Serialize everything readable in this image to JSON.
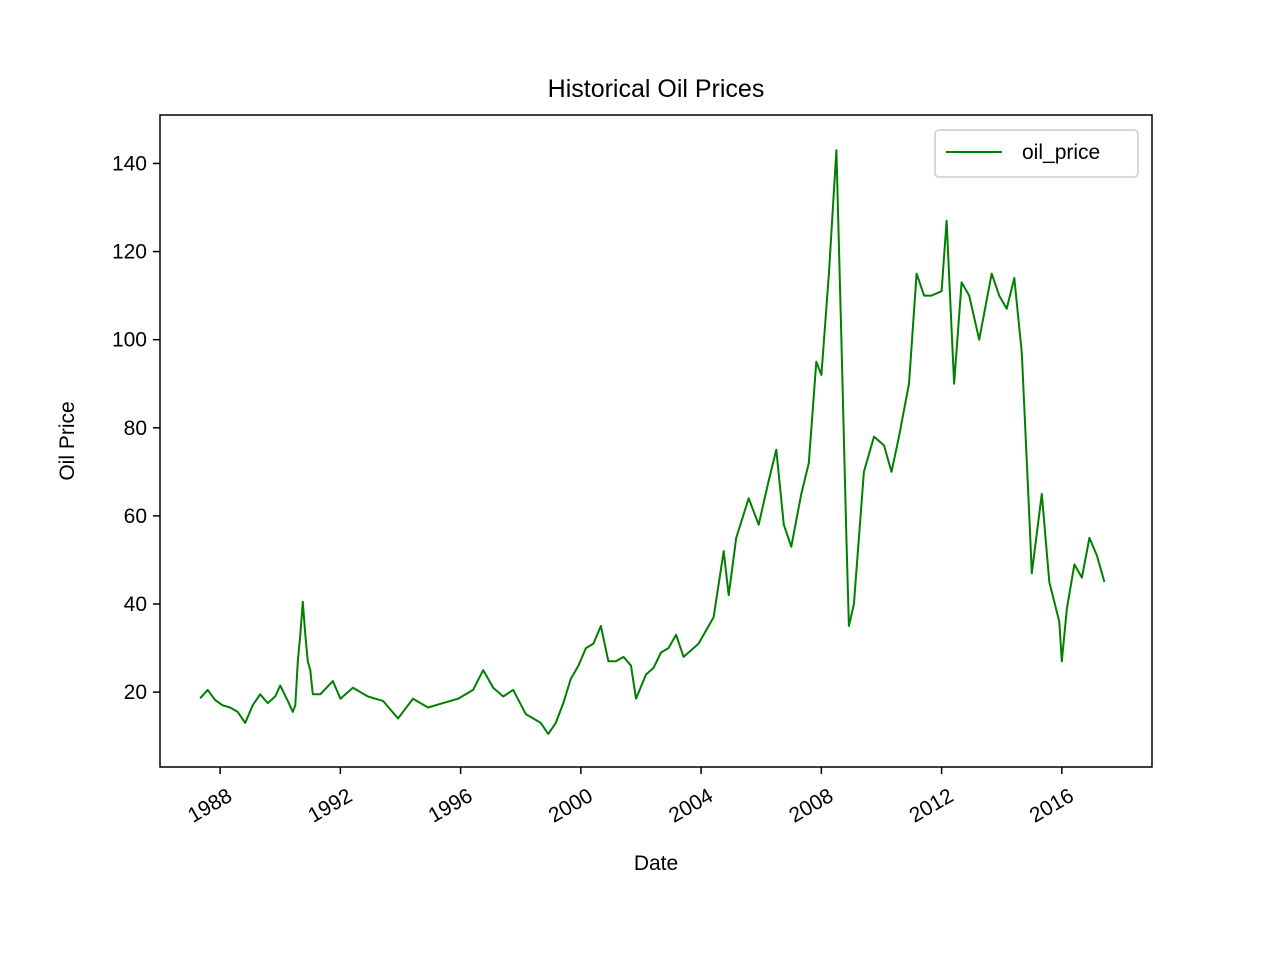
{
  "chart_data": {
    "type": "line",
    "title": "Historical Oil Prices",
    "xlabel": "Date",
    "ylabel": "Oil Price",
    "x_ticks": [
      "1988",
      "1992",
      "1996",
      "2000",
      "2004",
      "2008",
      "2012",
      "2016"
    ],
    "y_ticks": [
      20,
      40,
      60,
      80,
      100,
      120,
      140
    ],
    "xlim": [
      "1986-01-01",
      "2018-12-31"
    ],
    "ylim": [
      3,
      151
    ],
    "grid": false,
    "legend": {
      "position": "upper right",
      "entries": [
        "oil_price"
      ]
    },
    "series": [
      {
        "name": "oil_price",
        "color": "#008000",
        "points": [
          [
            "1987-05",
            18.6
          ],
          [
            "1987-08",
            20.5
          ],
          [
            "1987-11",
            18.2
          ],
          [
            "1988-02",
            17.0
          ],
          [
            "1988-05",
            16.5
          ],
          [
            "1988-08",
            15.5
          ],
          [
            "1988-11",
            13.0
          ],
          [
            "1989-02",
            17.0
          ],
          [
            "1989-05",
            19.5
          ],
          [
            "1989-08",
            17.5
          ],
          [
            "1989-11",
            19.0
          ],
          [
            "1990-01",
            21.5
          ],
          [
            "1990-04",
            18.0
          ],
          [
            "1990-06",
            15.5
          ],
          [
            "1990-07",
            17.0
          ],
          [
            "1990-08",
            27.0
          ],
          [
            "1990-09",
            33.0
          ],
          [
            "1990-10",
            40.5
          ],
          [
            "1990-11",
            33.0
          ],
          [
            "1990-12",
            27.0
          ],
          [
            "1991-01",
            25.0
          ],
          [
            "1991-02",
            19.5
          ],
          [
            "1991-05",
            19.5
          ],
          [
            "1991-10",
            22.5
          ],
          [
            "1992-01",
            18.5
          ],
          [
            "1992-06",
            21.0
          ],
          [
            "1992-12",
            19.0
          ],
          [
            "1993-06",
            18.0
          ],
          [
            "1993-12",
            14.0
          ],
          [
            "1994-06",
            18.5
          ],
          [
            "1994-12",
            16.5
          ],
          [
            "1995-06",
            17.5
          ],
          [
            "1995-12",
            18.5
          ],
          [
            "1996-06",
            20.5
          ],
          [
            "1996-10",
            25.0
          ],
          [
            "1997-02",
            21.0
          ],
          [
            "1997-06",
            19.0
          ],
          [
            "1997-10",
            20.5
          ],
          [
            "1998-03",
            15.0
          ],
          [
            "1998-09",
            13.0
          ],
          [
            "1998-12",
            10.5
          ],
          [
            "1999-03",
            13.0
          ],
          [
            "1999-06",
            17.5
          ],
          [
            "1999-09",
            23.0
          ],
          [
            "1999-12",
            26.0
          ],
          [
            "2000-03",
            30.0
          ],
          [
            "2000-06",
            31.0
          ],
          [
            "2000-09",
            35.0
          ],
          [
            "2000-12",
            27.0
          ],
          [
            "2001-03",
            27.0
          ],
          [
            "2001-06",
            28.0
          ],
          [
            "2001-09",
            26.0
          ],
          [
            "2001-11",
            18.5
          ],
          [
            "2002-03",
            24.0
          ],
          [
            "2002-06",
            25.5
          ],
          [
            "2002-09",
            29.0
          ],
          [
            "2002-12",
            30.0
          ],
          [
            "2003-03",
            33.0
          ],
          [
            "2003-06",
            28.0
          ],
          [
            "2003-12",
            31.0
          ],
          [
            "2004-06",
            37.0
          ],
          [
            "2004-10",
            52.0
          ],
          [
            "2004-12",
            42.0
          ],
          [
            "2005-03",
            55.0
          ],
          [
            "2005-08",
            64.0
          ],
          [
            "2005-12",
            58.0
          ],
          [
            "2006-04",
            68.0
          ],
          [
            "2006-07",
            75.0
          ],
          [
            "2006-10",
            58.0
          ],
          [
            "2007-01",
            53.0
          ],
          [
            "2007-05",
            65.0
          ],
          [
            "2007-08",
            72.0
          ],
          [
            "2007-11",
            95.0
          ],
          [
            "2008-01",
            92.0
          ],
          [
            "2008-04",
            115.0
          ],
          [
            "2008-07",
            143.0
          ],
          [
            "2008-09",
            100.0
          ],
          [
            "2008-11",
            55.0
          ],
          [
            "2008-12",
            35.0
          ],
          [
            "2009-02",
            40.0
          ],
          [
            "2009-06",
            70.0
          ],
          [
            "2009-10",
            78.0
          ],
          [
            "2010-02",
            76.0
          ],
          [
            "2010-05",
            70.0
          ],
          [
            "2010-08",
            78.0
          ],
          [
            "2010-12",
            90.0
          ],
          [
            "2011-03",
            115.0
          ],
          [
            "2011-06",
            110.0
          ],
          [
            "2011-09",
            110.0
          ],
          [
            "2012-01",
            111.0
          ],
          [
            "2012-03",
            127.0
          ],
          [
            "2012-06",
            90.0
          ],
          [
            "2012-09",
            113.0
          ],
          [
            "2012-12",
            110.0
          ],
          [
            "2013-04",
            100.0
          ],
          [
            "2013-09",
            115.0
          ],
          [
            "2013-12",
            110.0
          ],
          [
            "2014-03",
            107.0
          ],
          [
            "2014-06",
            114.0
          ],
          [
            "2014-09",
            97.0
          ],
          [
            "2014-12",
            60.0
          ],
          [
            "2015-01",
            47.0
          ],
          [
            "2015-05",
            65.0
          ],
          [
            "2015-08",
            45.0
          ],
          [
            "2015-12",
            36.0
          ],
          [
            "2016-01",
            27.0
          ],
          [
            "2016-03",
            39.0
          ],
          [
            "2016-06",
            49.0
          ],
          [
            "2016-09",
            46.0
          ],
          [
            "2016-12",
            55.0
          ],
          [
            "2017-03",
            51.0
          ],
          [
            "2017-06",
            45.0
          ]
        ]
      }
    ]
  }
}
